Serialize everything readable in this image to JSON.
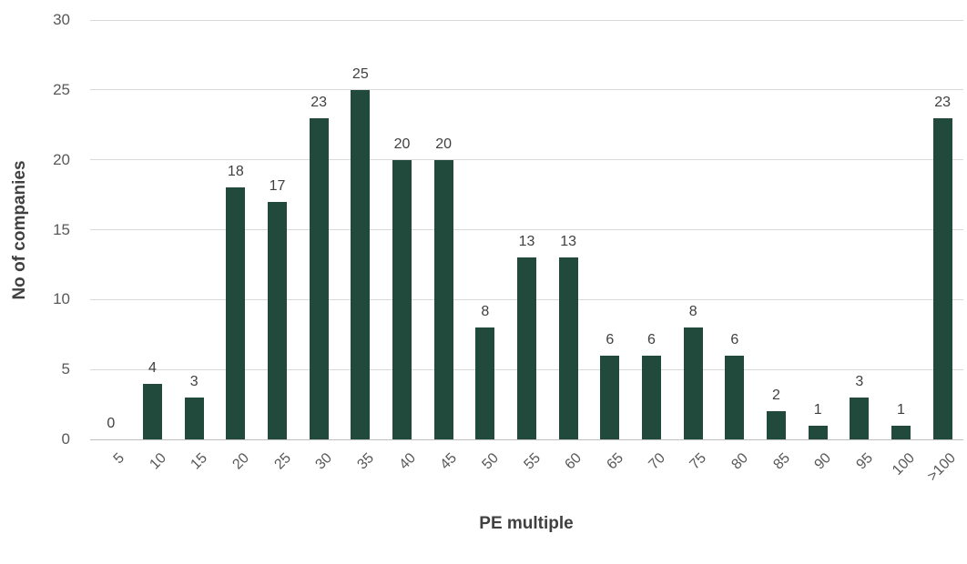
{
  "chart_data": {
    "type": "bar",
    "title": "",
    "xlabel": "PE multiple",
    "ylabel": "No of companies",
    "categories": [
      "5",
      "10",
      "15",
      "20",
      "25",
      "30",
      "35",
      "40",
      "45",
      "50",
      "55",
      "60",
      "65",
      "70",
      "75",
      "80",
      "85",
      "90",
      "95",
      "100",
      ">100"
    ],
    "values": [
      0,
      4,
      3,
      18,
      17,
      23,
      25,
      20,
      20,
      8,
      13,
      13,
      6,
      6,
      8,
      6,
      2,
      1,
      3,
      1,
      23
    ],
    "ylim": [
      0,
      30
    ],
    "ytick_step": 5,
    "yticks": [
      0,
      5,
      10,
      15,
      20,
      25,
      30
    ],
    "grid": true,
    "legend_position": "none",
    "show_value_labels": true,
    "colors": {
      "bar": "#21493C",
      "grid": "#d9d9d9",
      "axis_line": "#bfbfbf",
      "tick_label": "#595959",
      "value_label": "#404040",
      "axis_title": "#404040"
    }
  }
}
